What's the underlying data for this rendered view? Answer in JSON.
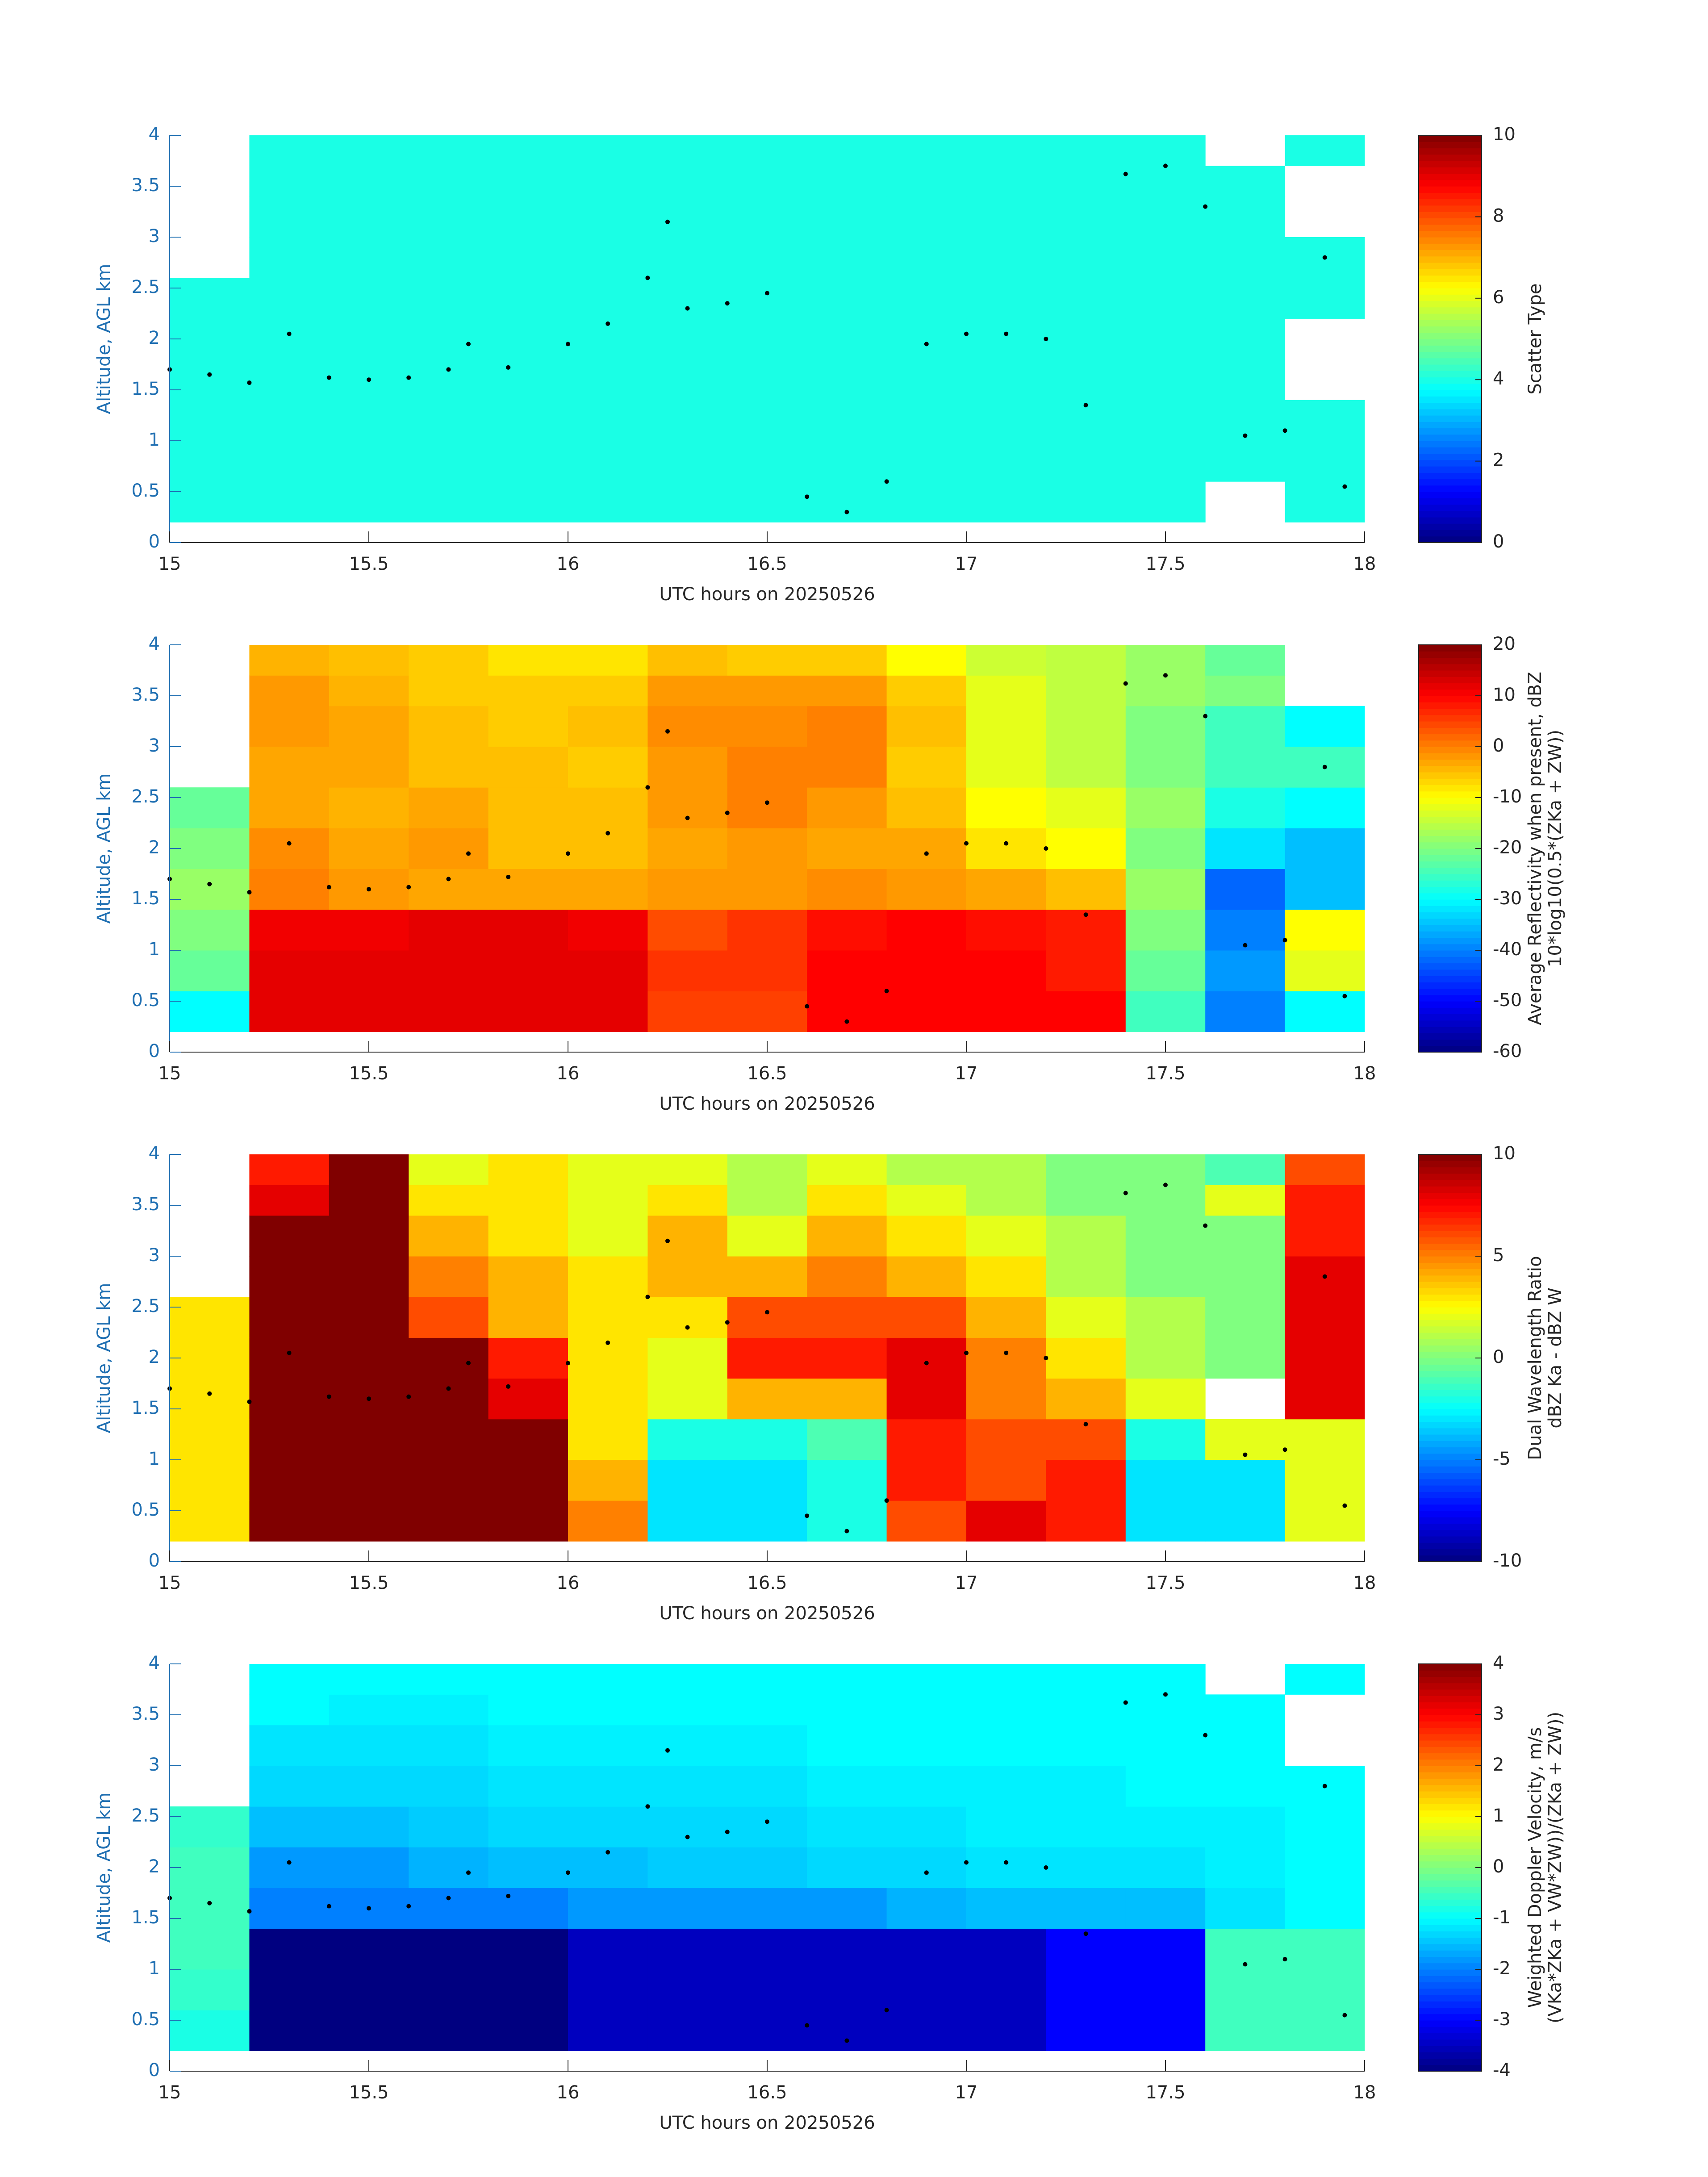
{
  "chart_data": [
    {
      "type": "heatmap",
      "colormap": "jet",
      "xlabel": "UTC hours on 20250526",
      "ylabel": "Altitude, AGL km",
      "xlim": [
        15,
        18
      ],
      "xticks": [
        15,
        15.5,
        16,
        16.5,
        17,
        17.5,
        18
      ],
      "ylim": [
        0,
        4
      ],
      "yticks": [
        0,
        0.5,
        1,
        1.5,
        2,
        2.5,
        3,
        3.5,
        4
      ],
      "clim": [
        0,
        10
      ],
      "cticks": [
        0,
        2,
        4,
        6,
        8,
        10
      ],
      "colorbar_label": [
        "Scatter Type"
      ],
      "x": [
        15,
        15.2,
        15.4,
        15.6,
        15.8,
        16,
        16.2,
        16.4,
        16.6,
        16.8,
        17,
        17.2,
        17.4,
        17.6,
        17.8,
        18
      ],
      "y": [
        0.2,
        0.6,
        1,
        1.4,
        1.8,
        2.2,
        2.6,
        3,
        3.4,
        3.7,
        4
      ],
      "z": [
        [
          4,
          4,
          4,
          4,
          4,
          4,
          4,
          4,
          4,
          4,
          4,
          4,
          4,
          null,
          4
        ],
        [
          4,
          4,
          4,
          4,
          4,
          4,
          4,
          4,
          4,
          4,
          4,
          4,
          4,
          4,
          4
        ],
        [
          4,
          4,
          4,
          4,
          4,
          4,
          4,
          4,
          4,
          4,
          4,
          4,
          4,
          4,
          4
        ],
        [
          4,
          4,
          4,
          4,
          4,
          4,
          4,
          4,
          4,
          4,
          4,
          4,
          4,
          4,
          null
        ],
        [
          4,
          4,
          4,
          4,
          4,
          4,
          4,
          4,
          4,
          4,
          4,
          4,
          4,
          4,
          null
        ],
        [
          4,
          4,
          4,
          4,
          4,
          4,
          4,
          4,
          4,
          4,
          4,
          4,
          4,
          4,
          4
        ],
        [
          null,
          4,
          4,
          4,
          4,
          4,
          4,
          4,
          4,
          4,
          4,
          4,
          4,
          4,
          4
        ],
        [
          null,
          4,
          4,
          4,
          4,
          4,
          4,
          4,
          4,
          4,
          4,
          4,
          4,
          4,
          null
        ],
        [
          null,
          4,
          4,
          4,
          4,
          4,
          4,
          4,
          4,
          4,
          4,
          4,
          4,
          4,
          null
        ],
        [
          null,
          4,
          4,
          4,
          4,
          4,
          4,
          4,
          4,
          4,
          4,
          4,
          4,
          null,
          4
        ]
      ],
      "points": {
        "x": [
          15,
          15.1,
          15.2,
          15.3,
          15.4,
          15.5,
          15.6,
          15.7,
          15.75,
          15.85,
          16,
          16.1,
          16.2,
          16.25,
          16.3,
          16.4,
          16.5,
          16.6,
          16.7,
          16.8,
          16.9,
          17,
          17.1,
          17.2,
          17.3,
          17.4,
          17.5,
          17.6,
          17.7,
          17.8,
          17.9,
          17.95
        ],
        "y": [
          1.7,
          1.65,
          1.57,
          2.05,
          1.62,
          1.6,
          1.62,
          1.7,
          1.95,
          1.72,
          1.95,
          2.15,
          2.6,
          3.15,
          2.3,
          2.35,
          2.45,
          0.45,
          0.3,
          0.6,
          1.95,
          2.05,
          2.05,
          2,
          1.35,
          3.62,
          3.7,
          3.3,
          1.05,
          1.1,
          2.8,
          0.55
        ]
      }
    },
    {
      "type": "heatmap",
      "colormap": "jet",
      "xlabel": "UTC hours on 20250526",
      "ylabel": "Altitude, AGL km",
      "xlim": [
        15,
        18
      ],
      "xticks": [
        15,
        15.5,
        16,
        16.5,
        17,
        17.5,
        18
      ],
      "ylim": [
        0,
        4
      ],
      "yticks": [
        0,
        0.5,
        1,
        1.5,
        2,
        2.5,
        3,
        3.5,
        4
      ],
      "clim": [
        -60,
        20
      ],
      "cticks": [
        -60,
        -50,
        -40,
        -30,
        -20,
        -10,
        0,
        10,
        20
      ],
      "colorbar_label": [
        "Average Reflectivity when present, dBZ",
        "10*log10(0.5*(ZKa + ZW))"
      ],
      "x": [
        15,
        15.2,
        15.4,
        15.6,
        15.8,
        16,
        16.2,
        16.4,
        16.6,
        16.8,
        17,
        17.2,
        17.4,
        17.6,
        17.8,
        18
      ],
      "y": [
        0.2,
        0.6,
        1,
        1.4,
        1.8,
        2.2,
        2.6,
        3,
        3.4,
        3.7,
        4
      ],
      "z": [
        [
          -30,
          12,
          12,
          12,
          12,
          12,
          5,
          5,
          10,
          10,
          10,
          10,
          -25,
          -40,
          -30
        ],
        [
          -22,
          12,
          12,
          12,
          12,
          12,
          6,
          6,
          10,
          10,
          10,
          8,
          -22,
          -38,
          -12
        ],
        [
          -20,
          11,
          11,
          12,
          12,
          11,
          4,
          6,
          9,
          10,
          9,
          8,
          -20,
          -40,
          -10
        ],
        [
          -18,
          0,
          -2,
          -3,
          -3,
          -3,
          -2,
          -2,
          -1,
          -2,
          -3,
          -5,
          -18,
          -42,
          -35
        ],
        [
          -20,
          -1,
          -3,
          -2,
          -5,
          -5,
          -3,
          -2,
          -3,
          -3,
          -8,
          -10,
          -20,
          -32,
          -35
        ],
        [
          -22,
          -3,
          -4,
          -3,
          -5,
          -5,
          -2,
          0,
          -2,
          -5,
          -10,
          -12,
          -18,
          -28,
          -30
        ],
        [
          null,
          -3,
          -3,
          -5,
          -5,
          -6,
          -2,
          0,
          0,
          -6,
          -12,
          -15,
          -20,
          -25,
          -25
        ],
        [
          null,
          -2,
          -3,
          -5,
          -6,
          -5,
          -1,
          -1,
          0,
          -5,
          -12,
          -15,
          -20,
          -25,
          -30
        ],
        [
          null,
          -2,
          -4,
          -6,
          -6,
          -6,
          -2,
          -2,
          -2,
          -6,
          -12,
          -15,
          -18,
          -20,
          null
        ],
        [
          null,
          -4,
          -5,
          -6,
          -8,
          -8,
          -5,
          -6,
          -6,
          -10,
          -14,
          -15,
          -18,
          -22,
          null
        ]
      ],
      "points": {
        "x": [
          15,
          15.1,
          15.2,
          15.3,
          15.4,
          15.5,
          15.6,
          15.7,
          15.75,
          15.85,
          16,
          16.1,
          16.2,
          16.25,
          16.3,
          16.4,
          16.5,
          16.6,
          16.7,
          16.8,
          16.9,
          17,
          17.1,
          17.2,
          17.3,
          17.4,
          17.5,
          17.6,
          17.7,
          17.8,
          17.9,
          17.95
        ],
        "y": [
          1.7,
          1.65,
          1.57,
          2.05,
          1.62,
          1.6,
          1.62,
          1.7,
          1.95,
          1.72,
          1.95,
          2.15,
          2.6,
          3.15,
          2.3,
          2.35,
          2.45,
          0.45,
          0.3,
          0.6,
          1.95,
          2.05,
          2.05,
          2,
          1.35,
          3.62,
          3.7,
          3.3,
          1.05,
          1.1,
          2.8,
          0.55
        ]
      }
    },
    {
      "type": "heatmap",
      "colormap": "jet",
      "xlabel": "UTC hours on 20250526",
      "ylabel": "Altitude, AGL km",
      "xlim": [
        15,
        18
      ],
      "xticks": [
        15,
        15.5,
        16,
        16.5,
        17,
        17.5,
        18
      ],
      "ylim": [
        0,
        4
      ],
      "yticks": [
        0,
        0.5,
        1,
        1.5,
        2,
        2.5,
        3,
        3.5,
        4
      ],
      "clim": [
        -10,
        10
      ],
      "cticks": [
        -10,
        -5,
        0,
        5,
        10
      ],
      "colorbar_label": [
        "Dual Wavelength Ratio",
        "dBZ Ka - dBZ W"
      ],
      "x": [
        15,
        15.2,
        15.4,
        15.6,
        15.8,
        16,
        16.2,
        16.4,
        16.6,
        16.8,
        17,
        17.2,
        17.4,
        17.6,
        17.8,
        18
      ],
      "y": [
        0.2,
        0.6,
        1,
        1.4,
        1.8,
        2.2,
        2.6,
        3,
        3.4,
        3.7,
        4
      ],
      "z": [
        [
          3,
          10,
          10,
          10,
          10,
          5,
          -3,
          -3,
          -2,
          6,
          8,
          7,
          -3,
          -3,
          2
        ],
        [
          3,
          10,
          10,
          10,
          10,
          4,
          -3,
          -3,
          -2,
          7,
          6,
          7,
          -3,
          -3,
          2
        ],
        [
          3,
          10,
          10,
          10,
          10,
          3,
          -2,
          -2,
          -1,
          7,
          6,
          6,
          -2,
          2,
          2
        ],
        [
          3,
          10,
          10,
          10,
          8,
          3,
          2,
          4,
          4,
          8,
          5,
          4,
          2,
          null,
          8
        ],
        [
          3,
          10,
          10,
          10,
          7,
          3,
          2,
          7,
          7,
          8,
          5,
          3,
          1,
          0,
          8
        ],
        [
          3,
          10,
          10,
          6,
          4,
          3,
          3,
          6,
          6,
          6,
          4,
          2,
          1,
          0,
          8
        ],
        [
          null,
          10,
          10,
          5,
          4,
          3,
          4,
          4,
          5,
          4,
          3,
          1,
          0,
          0,
          8
        ],
        [
          null,
          10,
          10,
          4,
          3,
          2,
          4,
          2,
          4,
          3,
          2,
          1,
          0,
          0,
          7
        ],
        [
          null,
          8,
          10,
          3,
          3,
          2,
          3,
          1,
          3,
          2,
          1,
          0,
          0,
          2,
          7
        ],
        [
          null,
          7,
          10,
          2,
          3,
          2,
          2,
          1,
          2,
          1,
          1,
          0,
          0,
          -1,
          6
        ]
      ],
      "points": {
        "x": [
          15,
          15.1,
          15.2,
          15.3,
          15.4,
          15.5,
          15.6,
          15.7,
          15.75,
          15.85,
          16,
          16.1,
          16.2,
          16.25,
          16.3,
          16.4,
          16.5,
          16.6,
          16.7,
          16.8,
          16.9,
          17,
          17.1,
          17.2,
          17.3,
          17.4,
          17.5,
          17.6,
          17.7,
          17.8,
          17.9,
          17.95
        ],
        "y": [
          1.7,
          1.65,
          1.57,
          2.05,
          1.62,
          1.6,
          1.62,
          1.7,
          1.95,
          1.72,
          1.95,
          2.15,
          2.6,
          3.15,
          2.3,
          2.35,
          2.45,
          0.45,
          0.3,
          0.6,
          1.95,
          2.05,
          2.05,
          2,
          1.35,
          3.62,
          3.7,
          3.3,
          1.05,
          1.1,
          2.8,
          0.55
        ]
      }
    },
    {
      "type": "heatmap",
      "colormap": "jet",
      "xlabel": "UTC hours on 20250526",
      "ylabel": "Altitude, AGL km",
      "xlim": [
        15,
        18
      ],
      "xticks": [
        15,
        15.5,
        16,
        16.5,
        17,
        17.5,
        18
      ],
      "ylim": [
        0,
        4
      ],
      "yticks": [
        0,
        0.5,
        1,
        1.5,
        2,
        2.5,
        3,
        3.5,
        4
      ],
      "clim": [
        -4,
        4
      ],
      "cticks": [
        -4,
        -3,
        -2,
        -1,
        0,
        1,
        2,
        3,
        4
      ],
      "colorbar_label": [
        "Weighted Doppler Velocity, m/s",
        "(VKa*ZKa + VW*ZW))/(ZKa + ZW))"
      ],
      "x": [
        15,
        15.2,
        15.4,
        15.6,
        15.8,
        16,
        16.2,
        16.4,
        16.6,
        16.8,
        17,
        17.2,
        17.4,
        17.6,
        17.8,
        18
      ],
      "y": [
        0.2,
        0.6,
        1,
        1.4,
        1.8,
        2.2,
        2.6,
        3,
        3.4,
        3.7,
        4
      ],
      "z": [
        [
          -0.8,
          -4,
          -4,
          -4,
          -4,
          -3.5,
          -3.5,
          -3.5,
          -3.5,
          -3.5,
          -3.5,
          -3,
          -3,
          -0.5,
          -0.5
        ],
        [
          -0.6,
          -4,
          -4,
          -4,
          -4,
          -3.5,
          -3.5,
          -3.5,
          -3.5,
          -3.5,
          -3.5,
          -3,
          -3,
          -0.5,
          -0.5
        ],
        [
          -0.5,
          -4,
          -4,
          -4,
          -4,
          -3.5,
          -3.5,
          -3.5,
          -3.5,
          -3.5,
          -3.5,
          -3,
          -3,
          -0.5,
          -0.5
        ],
        [
          -0.5,
          -2,
          -2,
          -2,
          -2,
          -1.8,
          -1.8,
          -1.8,
          -1.8,
          -1.6,
          -1.5,
          -1.5,
          -1.5,
          -1.2,
          -1
        ],
        [
          -0.5,
          -1.8,
          -1.8,
          -1.6,
          -1.5,
          -1.5,
          -1.4,
          -1.4,
          -1.3,
          -1.3,
          -1.2,
          -1.2,
          -1.2,
          -1.1,
          -1
        ],
        [
          -0.6,
          -1.5,
          -1.5,
          -1.4,
          -1.3,
          -1.3,
          -1.3,
          -1.3,
          -1.2,
          -1.2,
          -1.1,
          -1.1,
          -1.1,
          -1.1,
          -1
        ],
        [
          null,
          -1.3,
          -1.3,
          -1.3,
          -1.2,
          -1.2,
          -1.2,
          -1.2,
          -1.1,
          -1.1,
          -1.1,
          -1.1,
          -1,
          -1,
          -1
        ],
        [
          null,
          -1.2,
          -1.2,
          -1.2,
          -1.1,
          -1.1,
          -1.1,
          -1.1,
          -1,
          -1,
          -1,
          -1,
          -1,
          -1,
          null
        ],
        [
          null,
          -1,
          -1.1,
          -1.1,
          -1,
          -1,
          -1,
          -1,
          -1,
          -1,
          -1,
          -1,
          -1,
          -1,
          null
        ],
        [
          null,
          -1,
          -1,
          -1,
          -1,
          -1,
          -1,
          -1,
          -1,
          -1,
          -1,
          -1,
          -1,
          null,
          -1
        ]
      ],
      "points": {
        "x": [
          15,
          15.1,
          15.2,
          15.3,
          15.4,
          15.5,
          15.6,
          15.7,
          15.75,
          15.85,
          16,
          16.1,
          16.2,
          16.25,
          16.3,
          16.4,
          16.5,
          16.6,
          16.7,
          16.8,
          16.9,
          17,
          17.1,
          17.2,
          17.3,
          17.4,
          17.5,
          17.6,
          17.7,
          17.8,
          17.9,
          17.95
        ],
        "y": [
          1.7,
          1.65,
          1.57,
          2.05,
          1.62,
          1.6,
          1.62,
          1.7,
          1.95,
          1.72,
          1.95,
          2.15,
          2.6,
          3.15,
          2.3,
          2.35,
          2.45,
          0.45,
          0.3,
          0.6,
          1.95,
          2.05,
          2.05,
          2,
          1.35,
          3.62,
          3.7,
          3.3,
          1.05,
          1.1,
          2.8,
          0.55
        ]
      }
    }
  ]
}
